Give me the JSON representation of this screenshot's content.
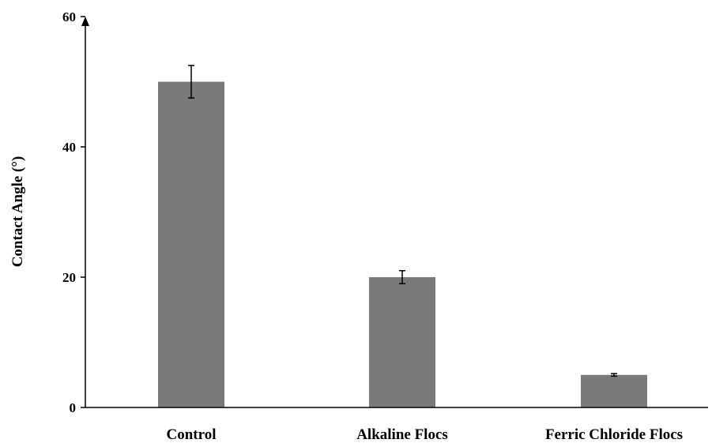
{
  "chart_data": {
    "type": "bar",
    "title": "",
    "xlabel": "",
    "ylabel": "Contact Angle (°)",
    "categories": [
      "Control",
      "Alkaline Flocs",
      "Ferric Chloride Flocs"
    ],
    "values": [
      50,
      20,
      5
    ],
    "errors": [
      2.5,
      1.0,
      0.2
    ],
    "ylim": [
      0,
      60
    ],
    "yticks": [
      "0",
      "20",
      "40",
      "60"
    ],
    "grid": false,
    "legend": "none",
    "bar_color": "#7a7a7a"
  }
}
